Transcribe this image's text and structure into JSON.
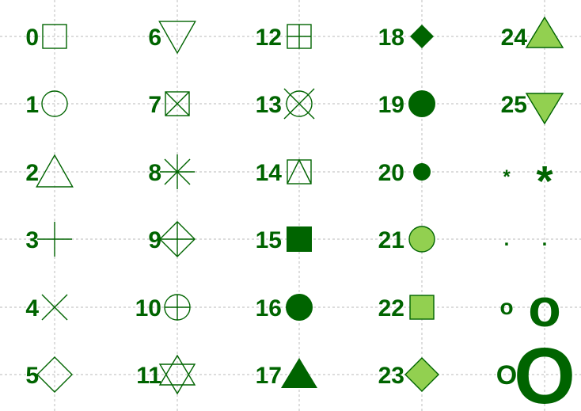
{
  "colors": {
    "stroke": "#006400",
    "fill_dark": "#006400",
    "fill_light": "#92d050",
    "grid": "#c8c8c8",
    "background": "#ffffff"
  },
  "grid": "dashed",
  "shapes": [
    {
      "label": "0",
      "symbol": "open-square-icon"
    },
    {
      "label": "1",
      "symbol": "open-circle-icon"
    },
    {
      "label": "2",
      "symbol": "open-triangle-up-icon"
    },
    {
      "label": "3",
      "symbol": "plus-icon"
    },
    {
      "label": "4",
      "symbol": "cross-icon"
    },
    {
      "label": "5",
      "symbol": "open-diamond-icon"
    },
    {
      "label": "6",
      "symbol": "open-triangle-down-icon"
    },
    {
      "label": "7",
      "symbol": "square-cross-icon"
    },
    {
      "label": "8",
      "symbol": "asterisk-icon"
    },
    {
      "label": "9",
      "symbol": "diamond-plus-icon"
    },
    {
      "label": "10",
      "symbol": "circle-plus-icon"
    },
    {
      "label": "11",
      "symbol": "triangles-up-down-icon"
    },
    {
      "label": "12",
      "symbol": "square-plus-icon"
    },
    {
      "label": "13",
      "symbol": "circle-cross-icon"
    },
    {
      "label": "14",
      "symbol": "square-triangle-icon"
    },
    {
      "label": "15",
      "symbol": "filled-square-icon"
    },
    {
      "label": "16",
      "symbol": "filled-circle-icon"
    },
    {
      "label": "17",
      "symbol": "filled-triangle-up-icon"
    },
    {
      "label": "18",
      "symbol": "filled-diamond-icon"
    },
    {
      "label": "19",
      "symbol": "solid-circle-icon"
    },
    {
      "label": "20",
      "symbol": "small-filled-circle-icon"
    },
    {
      "label": "21",
      "symbol": "fill-circle-icon"
    },
    {
      "label": "22",
      "symbol": "fill-square-icon"
    },
    {
      "label": "23",
      "symbol": "fill-diamond-icon"
    },
    {
      "label": "24",
      "symbol": "fill-triangle-up-icon"
    },
    {
      "label": "25",
      "symbol": "fill-triangle-down-icon"
    }
  ],
  "char_rows": [
    {
      "char": "*",
      "symbol": "asterisk-char-icon"
    },
    {
      "char": ".",
      "symbol": "period-char-icon"
    },
    {
      "char": "o",
      "symbol": "letter-o-char-icon"
    },
    {
      "char": "O",
      "symbol": "letter-capital-o-char-icon"
    }
  ]
}
